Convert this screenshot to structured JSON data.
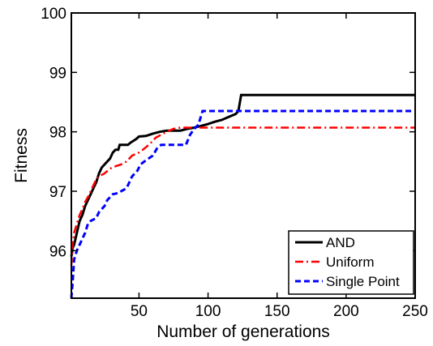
{
  "chart_data": {
    "type": "line",
    "title": "",
    "xlabel": "Number of generations",
    "ylabel": "Fitness",
    "xlim": [
      1,
      250
    ],
    "ylim": [
      95.2,
      100
    ],
    "xticks": [
      50,
      100,
      150,
      200,
      250
    ],
    "yticks": [
      96,
      97,
      98,
      99,
      100
    ],
    "grid": false,
    "legend_position": "bottom-right",
    "series": [
      {
        "name": "AND",
        "color": "#000000",
        "style": "solid",
        "points": [
          [
            1,
            95.9
          ],
          [
            2,
            96.05
          ],
          [
            3,
            96.1
          ],
          [
            5,
            96.3
          ],
          [
            7,
            96.5
          ],
          [
            9,
            96.6
          ],
          [
            11,
            96.75
          ],
          [
            13,
            96.85
          ],
          [
            15,
            96.95
          ],
          [
            17,
            97.05
          ],
          [
            19,
            97.15
          ],
          [
            21,
            97.3
          ],
          [
            23,
            97.4
          ],
          [
            25,
            97.45
          ],
          [
            27,
            97.5
          ],
          [
            29,
            97.55
          ],
          [
            31,
            97.65
          ],
          [
            33,
            97.7
          ],
          [
            35,
            97.7
          ],
          [
            36,
            97.78
          ],
          [
            42,
            97.78
          ],
          [
            44,
            97.82
          ],
          [
            46,
            97.85
          ],
          [
            48,
            97.88
          ],
          [
            50,
            97.92
          ],
          [
            55,
            97.93
          ],
          [
            60,
            97.97
          ],
          [
            65,
            98.0
          ],
          [
            70,
            98.02
          ],
          [
            80,
            98.02
          ],
          [
            85,
            98.05
          ],
          [
            90,
            98.07
          ],
          [
            95,
            98.1
          ],
          [
            100,
            98.13
          ],
          [
            105,
            98.17
          ],
          [
            110,
            98.2
          ],
          [
            115,
            98.25
          ],
          [
            120,
            98.3
          ],
          [
            122,
            98.35
          ],
          [
            124,
            98.62
          ],
          [
            250,
            98.62
          ]
        ]
      },
      {
        "name": "Uniform",
        "color": "#ff0000",
        "style": "dashdot",
        "points": [
          [
            1,
            95.75
          ],
          [
            2,
            96.1
          ],
          [
            3,
            96.3
          ],
          [
            5,
            96.45
          ],
          [
            7,
            96.6
          ],
          [
            9,
            96.7
          ],
          [
            11,
            96.82
          ],
          [
            13,
            96.9
          ],
          [
            15,
            97.0
          ],
          [
            17,
            97.1
          ],
          [
            19,
            97.2
          ],
          [
            21,
            97.25
          ],
          [
            25,
            97.3
          ],
          [
            29,
            97.38
          ],
          [
            33,
            97.42
          ],
          [
            37,
            97.45
          ],
          [
            41,
            97.5
          ],
          [
            45,
            97.6
          ],
          [
            50,
            97.65
          ],
          [
            54,
            97.72
          ],
          [
            58,
            97.8
          ],
          [
            62,
            97.9
          ],
          [
            66,
            97.95
          ],
          [
            70,
            98.0
          ],
          [
            75,
            98.05
          ],
          [
            80,
            98.07
          ],
          [
            250,
            98.07
          ]
        ]
      },
      {
        "name": "Single Point",
        "color": "#0000ff",
        "style": "dashed",
        "points": [
          [
            1,
            95.2
          ],
          [
            2,
            95.5
          ],
          [
            3,
            95.85
          ],
          [
            5,
            96.0
          ],
          [
            7,
            96.1
          ],
          [
            9,
            96.2
          ],
          [
            11,
            96.3
          ],
          [
            13,
            96.45
          ],
          [
            15,
            96.5
          ],
          [
            19,
            96.55
          ],
          [
            21,
            96.65
          ],
          [
            25,
            96.75
          ],
          [
            27,
            96.85
          ],
          [
            29,
            96.9
          ],
          [
            31,
            96.95
          ],
          [
            35,
            96.97
          ],
          [
            37,
            97.0
          ],
          [
            41,
            97.05
          ],
          [
            43,
            97.15
          ],
          [
            45,
            97.25
          ],
          [
            49,
            97.35
          ],
          [
            51,
            97.45
          ],
          [
            55,
            97.52
          ],
          [
            60,
            97.6
          ],
          [
            63,
            97.72
          ],
          [
            66,
            97.78
          ],
          [
            84,
            97.78
          ],
          [
            87,
            97.95
          ],
          [
            90,
            98.05
          ],
          [
            93,
            98.12
          ],
          [
            96,
            98.35
          ],
          [
            250,
            98.35
          ]
        ]
      }
    ]
  }
}
